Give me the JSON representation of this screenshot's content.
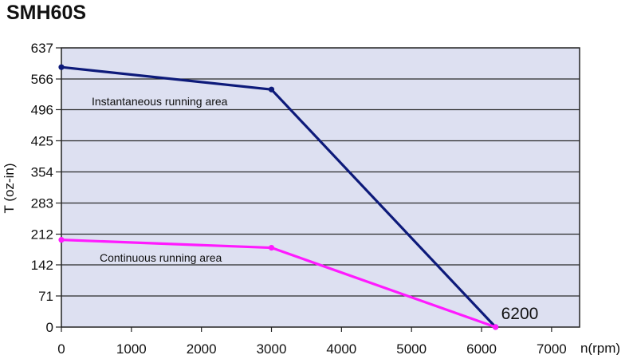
{
  "chart_data": {
    "type": "line",
    "title": "SMH60S",
    "xlabel": "n(rpm)",
    "ylabel": "T (oz-in)",
    "xlim": [
      0,
      7400
    ],
    "ylim": [
      0,
      637
    ],
    "x_ticks": [
      0,
      1000,
      2000,
      3000,
      4000,
      5000,
      6000,
      7000
    ],
    "y_ticks": [
      0,
      71,
      142,
      212,
      283,
      354,
      425,
      496,
      566,
      637
    ],
    "grid": "horizontal",
    "series": [
      {
        "name": "Instantaneous running area",
        "color": "#0d1a7a",
        "points": [
          [
            0,
            593
          ],
          [
            3000,
            542
          ],
          [
            6200,
            0
          ]
        ]
      },
      {
        "name": "Continuous running area",
        "color": "#ff1aff",
        "points": [
          [
            0,
            199
          ],
          [
            3000,
            181
          ],
          [
            6200,
            0
          ]
        ]
      }
    ],
    "annotations": [
      {
        "text": "6200",
        "x": 6200,
        "y": 0
      }
    ],
    "plot_background": "#dde0f1"
  }
}
